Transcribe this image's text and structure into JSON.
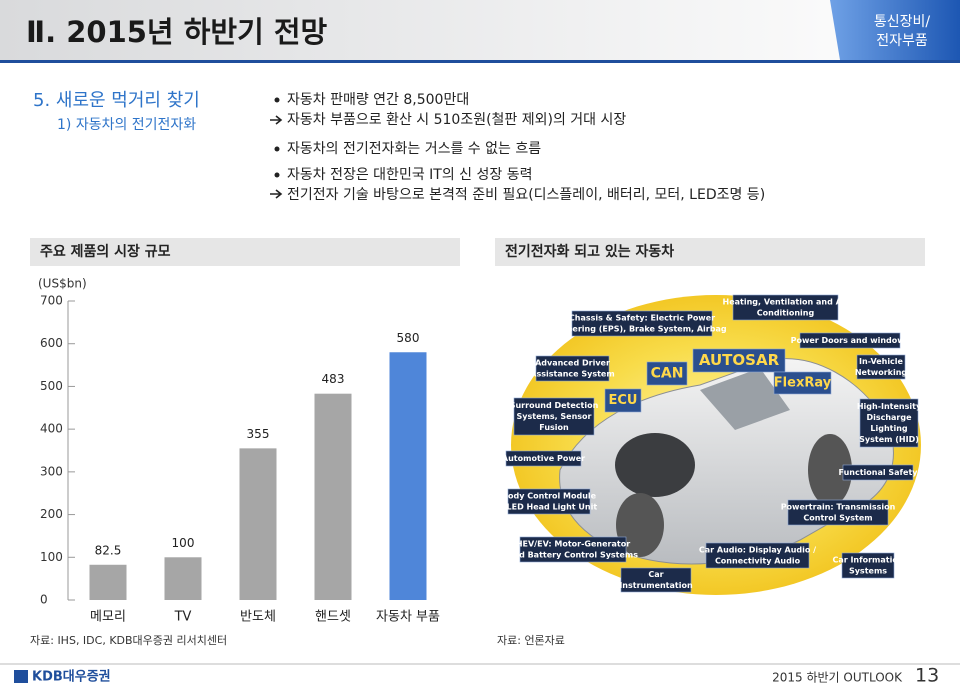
{
  "header": {
    "title": "Ⅱ. 2015년 하반기 전망",
    "badge": [
      "통신장비/",
      "전자부품"
    ]
  },
  "section": {
    "title": "5. 새로운 먹거리 찾기",
    "subtitle": "1) 자동차의 전기전자화"
  },
  "bullets": [
    {
      "text": "자동차 판매량 연간 8,500만대",
      "sub": [
        "자동차 부품으로 환산 시 510조원(철판 제외)의 거대 시장"
      ]
    },
    {
      "text": "자동차의 전기전자화는 거스를 수 없는 흐름"
    },
    {
      "text": "자동차 전장은 대한민국 IT의 신 성장 동력",
      "sub": [
        "전기전자 기술 바탕으로 본격적 준비 필요(디스플레이, 배터리, 모터, LED조명 등)"
      ]
    }
  ],
  "panels": [
    {
      "title": "주요 제품의 시장 규모"
    },
    {
      "title": "전기전자화 되고 있는 자동차"
    }
  ],
  "chart_data": {
    "type": "bar",
    "y_label": "(US$bn)",
    "categories": [
      "메모리",
      "TV",
      "반도체",
      "핸드셋",
      "자동차 부품"
    ],
    "values": [
      82.5,
      100,
      355,
      483,
      580
    ],
    "colors": [
      "#a6a6a6",
      "#a6a6a6",
      "#a6a6a6",
      "#a6a6a6",
      "#4f86d9"
    ],
    "ylim": [
      0,
      700
    ],
    "yticks": [
      0,
      100,
      200,
      300,
      400,
      500,
      600,
      700
    ],
    "data_labels": true
  },
  "diagram": {
    "labels": [
      {
        "lines": [
          "Heating, Ventilation and Air",
          "Conditioning"
        ]
      },
      {
        "lines": [
          "Chassis & Safety: Electric Power",
          "Steering (EPS), Brake System, Airbag"
        ]
      },
      {
        "lines": [
          "Power Doors and windows"
        ]
      },
      {
        "lines": [
          "Advanced Driver",
          "Assistance System"
        ]
      },
      {
        "lines": [
          "AUTOSAR"
        ]
      },
      {
        "lines": [
          "CAN"
        ]
      },
      {
        "lines": [
          "In-Vehicle",
          "Networking"
        ]
      },
      {
        "lines": [
          "FlexRay"
        ]
      },
      {
        "lines": [
          "ECU"
        ]
      },
      {
        "lines": [
          "Surround Detection",
          "Systems, Sensor",
          "Fusion"
        ]
      },
      {
        "lines": [
          "High-Intensity",
          "Discharge",
          "Lighting",
          "System (HID)"
        ]
      },
      {
        "lines": [
          "Automotive Power"
        ]
      },
      {
        "lines": [
          "Functional Safety"
        ]
      },
      {
        "lines": [
          "Body Control Module",
          "/ LED Head Light Unit"
        ]
      },
      {
        "lines": [
          "Powertrain: Transmission",
          "Control System"
        ]
      },
      {
        "lines": [
          "HEV/EV: Motor-Generator",
          "and Battery Control Systems"
        ]
      },
      {
        "lines": [
          "Car Audio: Display Audio /",
          "Connectivity Audio"
        ]
      },
      {
        "lines": [
          "Car Information",
          "Systems"
        ]
      },
      {
        "lines": [
          "Car",
          "Instrumentation"
        ]
      }
    ]
  },
  "sources": [
    "자료: IHS, IDC, KDB대우증권 리서치센터",
    "자료: 언론자료"
  ],
  "footer": {
    "logo": "KDB대우증권",
    "outlook": "2015 하반기 OUTLOOK",
    "page": 13
  }
}
